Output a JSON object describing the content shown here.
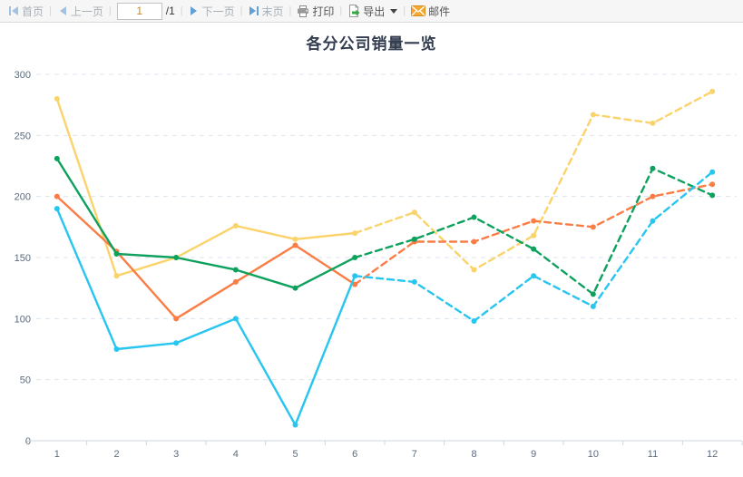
{
  "toolbar": {
    "first": "首页",
    "prev": "上一页",
    "page_value": "1",
    "page_total": "/1",
    "next": "下一页",
    "last": "末页",
    "print": "打印",
    "export": "导出",
    "mail": "邮件"
  },
  "chart_data": {
    "type": "line",
    "title": "各分公司销量一览",
    "x": [
      1,
      2,
      3,
      4,
      5,
      6,
      7,
      8,
      9,
      10,
      11,
      12
    ],
    "xlabel": "",
    "ylabel": "",
    "ylim": [
      0,
      300
    ],
    "yticks": [
      0,
      50,
      100,
      150,
      200,
      250,
      300
    ],
    "grid": "horizontal-dashed",
    "legend": "none",
    "line_style": "solid from x=1 to x=6, dashed from x=6 to x=12, circle markers at every point",
    "forecast_from_index": 5,
    "series": [
      {
        "color": "#fbd36b",
        "values": [
          280,
          135,
          150,
          176,
          165,
          170,
          187,
          140,
          168,
          267,
          260,
          286
        ]
      },
      {
        "color": "#fa7d45",
        "values": [
          200,
          155,
          100,
          130,
          160,
          128,
          163,
          163,
          180,
          175,
          200,
          210
        ]
      },
      {
        "color": "#0ea15d",
        "values": [
          231,
          153,
          150,
          140,
          125,
          150,
          165,
          183,
          157,
          120,
          223,
          201
        ]
      },
      {
        "color": "#27c5f0",
        "values": [
          190,
          75,
          80,
          100,
          13,
          135,
          130,
          98,
          135,
          110,
          180,
          220
        ]
      }
    ]
  }
}
